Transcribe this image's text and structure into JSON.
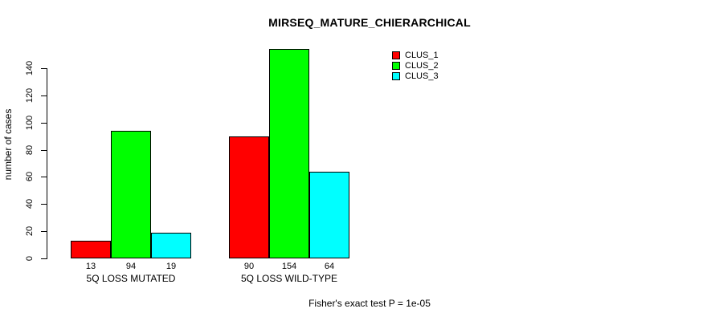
{
  "title": "MIRSEQ_MATURE_CHIERARCHICAL",
  "footer": "Fisher's exact test P = 1e-05",
  "y_axis": {
    "label": "number of cases",
    "ticks": [
      0,
      20,
      40,
      60,
      80,
      100,
      120,
      140
    ]
  },
  "legend": {
    "items": [
      {
        "label": "CLUS_1",
        "color": "#FF0000"
      },
      {
        "label": "CLUS_2",
        "color": "#00FF00"
      },
      {
        "label": "CLUS_3",
        "color": "#00FFFF"
      }
    ]
  },
  "chart_data": {
    "type": "bar",
    "title": "MIRSEQ_MATURE_CHIERARCHICAL",
    "categories": [
      "5Q LOSS MUTATED",
      "5Q LOSS WILD-TYPE"
    ],
    "series": [
      {
        "name": "CLUS_1",
        "color": "#FF0000",
        "values": [
          13,
          90
        ]
      },
      {
        "name": "CLUS_2",
        "color": "#00FF00",
        "values": [
          94,
          154
        ]
      },
      {
        "name": "CLUS_3",
        "color": "#00FFFF",
        "values": [
          19,
          64
        ]
      }
    ],
    "xlabel": "",
    "ylabel": "number of cases",
    "ylim": [
      0,
      155
    ],
    "yticks": [
      0,
      20,
      40,
      60,
      80,
      100,
      120,
      140
    ],
    "bar_value_labels_shown": true,
    "grid": false,
    "legend_position": "top-right",
    "annotation": "Fisher's exact test P = 1e-05"
  }
}
